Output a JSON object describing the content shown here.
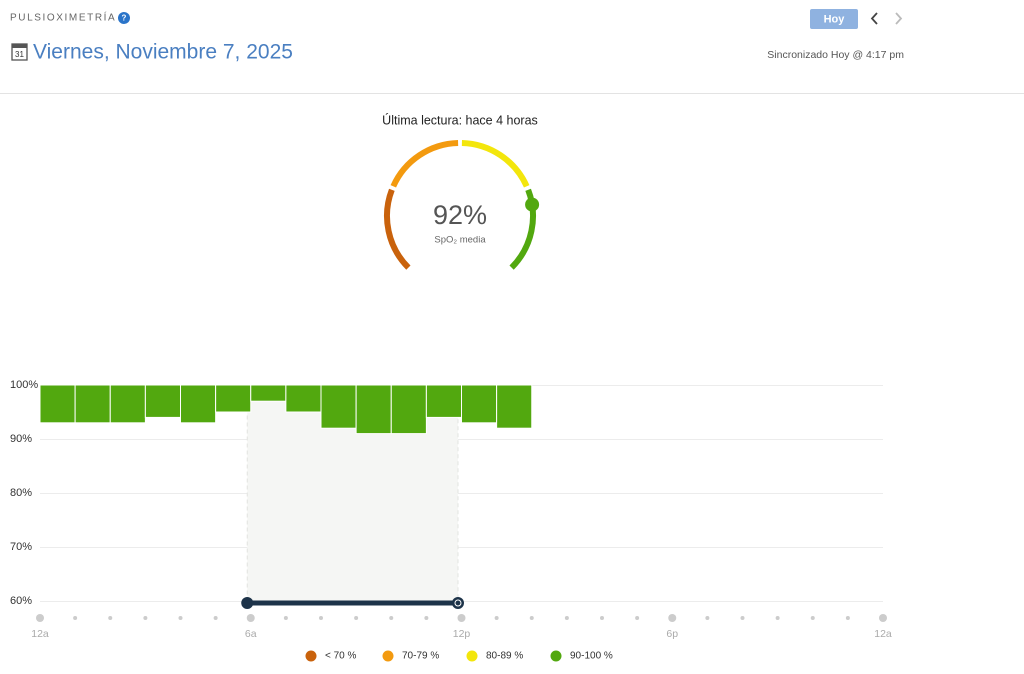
{
  "header": {
    "title": "PULSIOXIMETRÍA",
    "help": "?",
    "calendar_icon": "31",
    "date": "Viernes, Noviembre 7, 2025",
    "today_button": "Hoy",
    "sync": "Sincronizado Hoy @ 4:17 pm"
  },
  "gauge": {
    "caption": "Última lectura: hace 4 horas",
    "value": 92,
    "value_label": "92%",
    "sublabel": "SpO₂ media",
    "range": [
      60,
      100
    ],
    "thresholds": [
      70,
      80,
      90
    ]
  },
  "chart_data": {
    "type": "bar",
    "x": [
      0,
      1,
      2,
      3,
      4,
      5,
      6,
      7,
      8,
      9,
      10,
      11,
      12,
      13
    ],
    "values": [
      93,
      93,
      93,
      94,
      93,
      95,
      97,
      95,
      92,
      91,
      91,
      94,
      93,
      92
    ],
    "color": "#52a80f",
    "xlim": [
      0,
      24
    ],
    "xticks": [
      {
        "value": 0,
        "label": "12a"
      },
      {
        "value": 6,
        "label": "6a"
      },
      {
        "value": 12,
        "label": "12p"
      },
      {
        "value": 18,
        "label": "6p"
      },
      {
        "value": 24,
        "label": "12a"
      }
    ],
    "ylim": [
      60,
      100
    ],
    "yticks": [
      {
        "value": 100,
        "label": "100%"
      },
      {
        "value": 90,
        "label": "90%"
      },
      {
        "value": 80,
        "label": "80%"
      },
      {
        "value": 70,
        "label": "70%"
      },
      {
        "value": 60,
        "label": "60%"
      }
    ],
    "grid": true,
    "sleep_x": [
      5.9,
      11.9
    ],
    "legend": [
      {
        "label": "< 70 %",
        "color": "#c9620c"
      },
      {
        "label": "70-79 %",
        "color": "#f39a0f"
      },
      {
        "label": "80-89 %",
        "color": "#f3e60c"
      },
      {
        "label": "90-100 %",
        "color": "#52a80f"
      }
    ]
  }
}
